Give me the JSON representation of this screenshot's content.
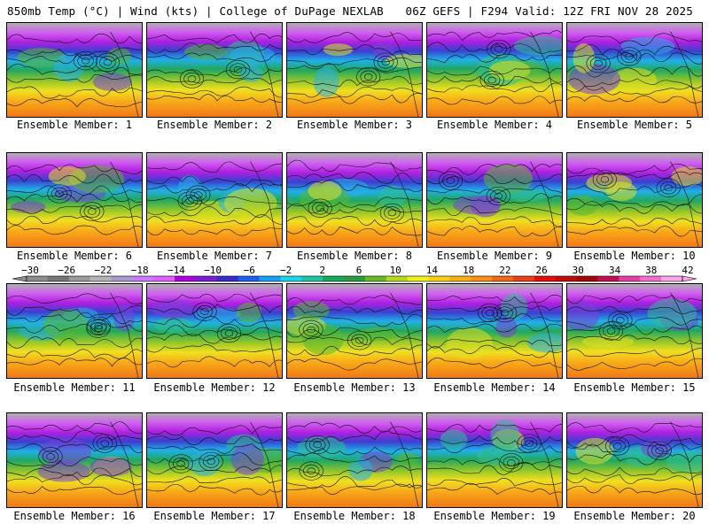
{
  "header": {
    "left_title": "850mb Temp (°C) | Wind (kts) | College of DuPage NEXLAB",
    "right_title": "06Z GEFS | F294 Valid: 12Z FRI NOV 28 2025"
  },
  "members": [
    {
      "label": "Ensemble Member: 1"
    },
    {
      "label": "Ensemble Member: 2"
    },
    {
      "label": "Ensemble Member: 3"
    },
    {
      "label": "Ensemble Member: 4"
    },
    {
      "label": "Ensemble Member: 5"
    },
    {
      "label": "Ensemble Member: 6"
    },
    {
      "label": "Ensemble Member: 7"
    },
    {
      "label": "Ensemble Member: 8"
    },
    {
      "label": "Ensemble Member: 9"
    },
    {
      "label": "Ensemble Member: 10"
    },
    {
      "label": "Ensemble Member: 11"
    },
    {
      "label": "Ensemble Member: 12"
    },
    {
      "label": "Ensemble Member: 13"
    },
    {
      "label": "Ensemble Member: 14"
    },
    {
      "label": "Ensemble Member: 15"
    },
    {
      "label": "Ensemble Member: 16"
    },
    {
      "label": "Ensemble Member: 17"
    },
    {
      "label": "Ensemble Member: 18"
    },
    {
      "label": "Ensemble Member: 19"
    },
    {
      "label": "Ensemble Member: 20"
    }
  ],
  "colorbar": {
    "labels": [
      "−30",
      "−26",
      "−22",
      "−18",
      "−14",
      "−10",
      "−6",
      "−2",
      "2",
      "6",
      "10",
      "14",
      "18",
      "22",
      "26",
      "30",
      "34",
      "38",
      "42"
    ],
    "colors": [
      "#8c8c8c",
      "#767676",
      "#9a9a9a",
      "#b4b4b4",
      "#a89acb",
      "#c77dff",
      "#e060ff",
      "#b000e0",
      "#7a1fd0",
      "#3a2cc8",
      "#1f5ff0",
      "#1aa0f0",
      "#19d6e6",
      "#1fc4a0",
      "#17a85a",
      "#2c9c3c",
      "#69b828",
      "#b8d820",
      "#f0f020",
      "#f8d018",
      "#f8b018",
      "#f89018",
      "#f06818",
      "#e84018",
      "#e01010",
      "#c00c0c",
      "#a00808",
      "#c01050",
      "#e040a0",
      "#f070d0",
      "#f8a8e8"
    ]
  }
}
